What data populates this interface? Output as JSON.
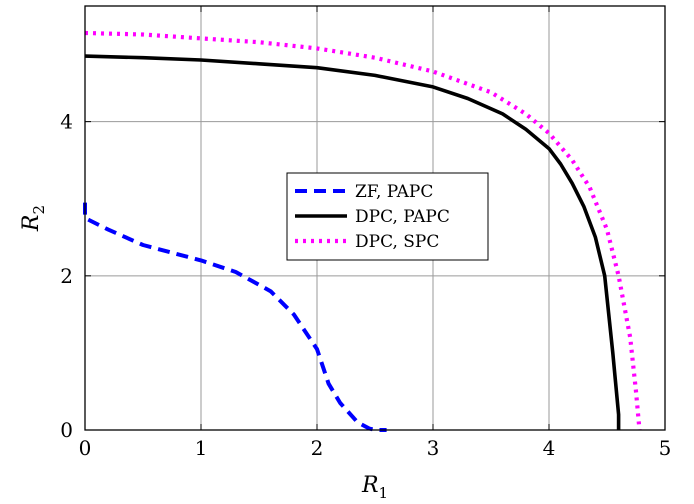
{
  "chart_data": {
    "type": "line",
    "title": "",
    "xlabel": {
      "main": "R",
      "sub": "1"
    },
    "ylabel": {
      "main": "R",
      "sub": "2"
    },
    "xlim": [
      0,
      5
    ],
    "ylim": [
      0,
      5.5
    ],
    "xticks": [
      0,
      1,
      2,
      3,
      4,
      5
    ],
    "yticks": [
      0,
      2,
      4
    ],
    "grid": true,
    "legend": "center",
    "series": [
      {
        "name": "ZF, PAPC",
        "color": "#0000ff",
        "style": "dashed",
        "x": [
          0,
          0,
          0.2,
          0.5,
          1.0,
          1.3,
          1.6,
          1.8,
          2.0,
          2.1,
          2.2,
          2.35,
          2.45,
          2.5,
          2.6
        ],
        "y": [
          2.95,
          2.75,
          2.6,
          2.4,
          2.2,
          2.05,
          1.8,
          1.5,
          1.05,
          0.6,
          0.35,
          0.1,
          0.02,
          0.0,
          0.0
        ]
      },
      {
        "name": "DPC, PAPC",
        "color": "#000000",
        "style": "solid",
        "x": [
          0,
          0.5,
          1.0,
          1.5,
          2.0,
          2.5,
          3.0,
          3.3,
          3.6,
          3.8,
          4.0,
          4.1,
          4.2,
          4.3,
          4.4,
          4.48,
          4.55,
          4.6,
          4.6
        ],
        "y": [
          4.85,
          4.83,
          4.8,
          4.75,
          4.7,
          4.6,
          4.45,
          4.3,
          4.1,
          3.9,
          3.65,
          3.45,
          3.2,
          2.9,
          2.5,
          2.0,
          1.0,
          0.2,
          0.0
        ]
      },
      {
        "name": "DPC, SPC",
        "color": "#ff00ff",
        "style": "dotted",
        "x": [
          0,
          0.5,
          1.0,
          1.5,
          2.0,
          2.5,
          3.0,
          3.5,
          3.8,
          4.0,
          4.2,
          4.35,
          4.5,
          4.6,
          4.7,
          4.75,
          4.78
        ],
        "y": [
          5.15,
          5.13,
          5.08,
          5.03,
          4.95,
          4.83,
          4.65,
          4.38,
          4.1,
          3.85,
          3.5,
          3.15,
          2.6,
          2.0,
          1.2,
          0.5,
          0.0
        ]
      }
    ]
  }
}
